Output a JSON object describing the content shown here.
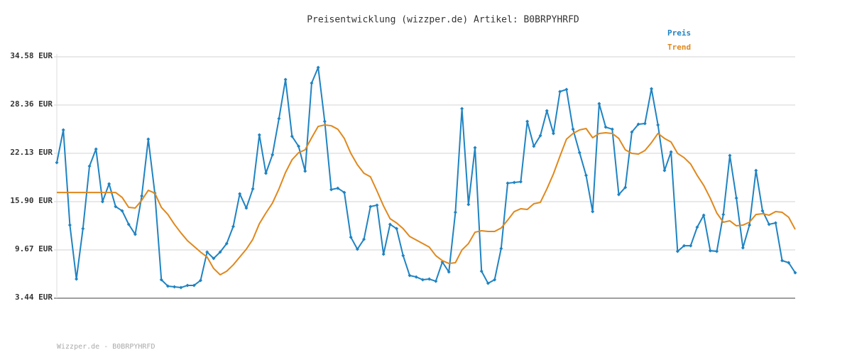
{
  "chart_data": {
    "type": "line",
    "title": "Preisentwicklung (wizzper.de) Artikel: B0BRPYHRFD",
    "footer": "Wizzper.de - B0BRPYHRFD",
    "legend": "top-right",
    "grid": true,
    "markers": true,
    "ylim": [
      3.44,
      34.58
    ],
    "yticks": [
      {
        "value": 3.44,
        "label": "3.44 EUR"
      },
      {
        "value": 9.67,
        "label": "9.67 EUR"
      },
      {
        "value": 15.9,
        "label": "15.90 EUR"
      },
      {
        "value": 22.13,
        "label": "22.13 EUR"
      },
      {
        "value": 28.36,
        "label": "28.36 EUR"
      },
      {
        "value": 34.58,
        "label": "34.58 EUR"
      }
    ],
    "series": [
      {
        "name": "Preis",
        "color": "#1f83c2",
        "markers": true,
        "values": [
          20.93,
          25.15,
          12.87,
          5.91,
          12.41,
          20.48,
          22.67,
          15.9,
          18.19,
          15.26,
          14.71,
          12.97,
          11.68,
          16.63,
          23.96,
          17.0,
          5.82,
          5.0,
          4.91,
          4.81,
          5.09,
          5.09,
          5.73,
          9.39,
          8.57,
          9.39,
          10.49,
          12.69,
          16.9,
          15.07,
          17.54,
          24.5,
          19.56,
          21.94,
          26.61,
          31.65,
          24.32,
          23.04,
          19.83,
          31.19,
          33.21,
          26.24,
          17.45,
          17.63,
          17.08,
          11.31,
          9.76,
          11.04,
          15.26,
          15.44,
          9.12,
          12.97,
          12.41,
          8.93,
          6.37,
          6.18,
          5.82,
          5.91,
          5.63,
          8.11,
          6.83,
          14.52,
          27.89,
          15.53,
          22.86,
          6.92,
          5.36,
          5.82,
          9.85,
          18.28,
          18.37,
          18.46,
          26.24,
          23.04,
          24.41,
          27.62,
          24.69,
          30.09,
          30.37,
          25.24,
          22.21,
          19.28,
          14.61,
          28.53,
          25.51,
          25.24,
          16.81,
          17.73,
          24.87,
          25.88,
          25.97,
          30.46,
          25.79,
          19.92,
          22.31,
          9.48,
          10.21,
          10.21,
          12.6,
          14.15,
          9.57,
          9.48,
          14.24,
          21.85,
          16.35,
          9.94,
          12.87,
          19.92,
          14.71,
          12.97,
          13.15,
          8.29,
          8.02,
          6.73
        ]
      },
      {
        "name": "Trend",
        "color": "#e0881c",
        "markers": false,
        "values": [
          17.08,
          17.08,
          17.08,
          17.08,
          17.08,
          17.08,
          17.08,
          17.08,
          17.08,
          17.08,
          16.44,
          15.16,
          15.07,
          16.08,
          17.36,
          17.0,
          15.16,
          14.24,
          12.97,
          11.86,
          10.86,
          10.12,
          9.39,
          8.75,
          7.28,
          6.46,
          6.92,
          7.74,
          8.75,
          9.76,
          11.04,
          13.05,
          14.43,
          15.71,
          17.54,
          19.65,
          21.3,
          22.21,
          22.58,
          24.14,
          25.6,
          25.79,
          25.69,
          25.24,
          24.05,
          22.12,
          20.66,
          19.56,
          19.1,
          17.27,
          15.34,
          13.7,
          13.15,
          12.41,
          11.41,
          10.95,
          10.49,
          10.03,
          8.93,
          8.29,
          7.92,
          8.02,
          9.66,
          10.49,
          11.95,
          12.14,
          12.05,
          12.05,
          12.5,
          13.51,
          14.61,
          14.98,
          14.89,
          15.62,
          15.8,
          17.54,
          19.47,
          21.76,
          23.96,
          24.69,
          25.15,
          25.33,
          24.14,
          24.69,
          24.78,
          24.69,
          24.05,
          22.58,
          22.12,
          22.03,
          22.49,
          23.5,
          24.69,
          24.05,
          23.59,
          22.12,
          21.57,
          20.75,
          19.28,
          18.0,
          16.35,
          14.43,
          13.24,
          13.42,
          12.78,
          12.87,
          13.24,
          14.24,
          14.34,
          14.15,
          14.61,
          14.52,
          13.88,
          12.32
        ]
      }
    ]
  }
}
